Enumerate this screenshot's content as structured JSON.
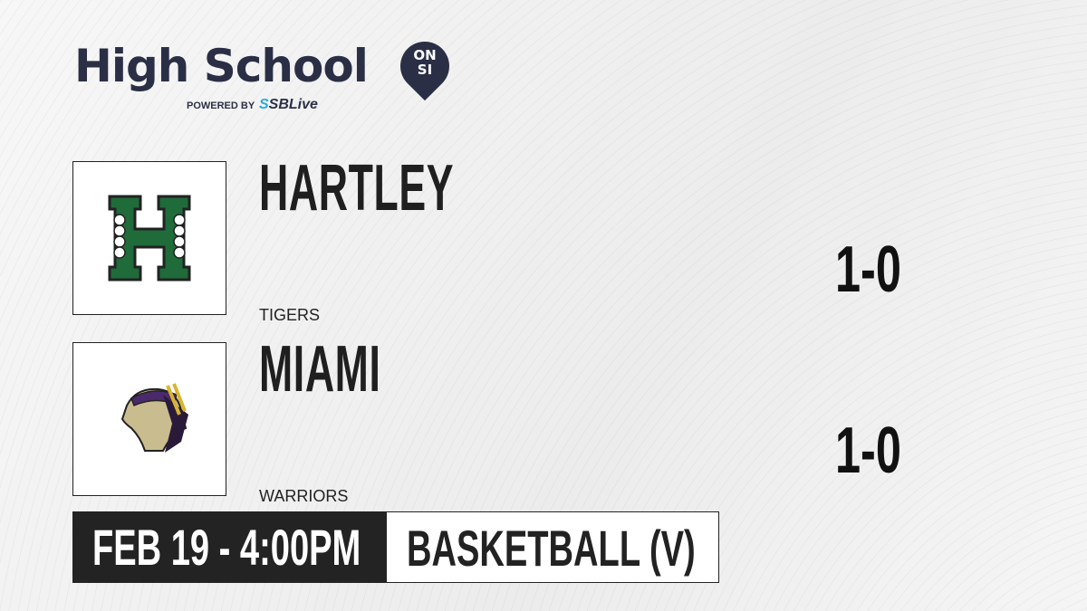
{
  "brand": {
    "title": "High School",
    "badge_top": "ON",
    "badge_bottom": "SI",
    "powered_by": "POWERED BY",
    "partner_prefix": "S",
    "partner": "SBLive",
    "accent": "#2b2f45",
    "partner_color": "#29a8e0"
  },
  "teams": [
    {
      "name": "HARTLEY",
      "mascot": "TIGERS",
      "record": "1-0",
      "logo_icon": "hartley-h-logo",
      "color": "#1f6b3a"
    },
    {
      "name": "MIAMI",
      "mascot": "WARRIORS",
      "record": "1-0",
      "logo_icon": "warrior-head-logo",
      "color": "#4b2a6b"
    }
  ],
  "game": {
    "datetime": "FEB 19 - 4:00PM",
    "sport": "BASKETBALL (V)"
  }
}
